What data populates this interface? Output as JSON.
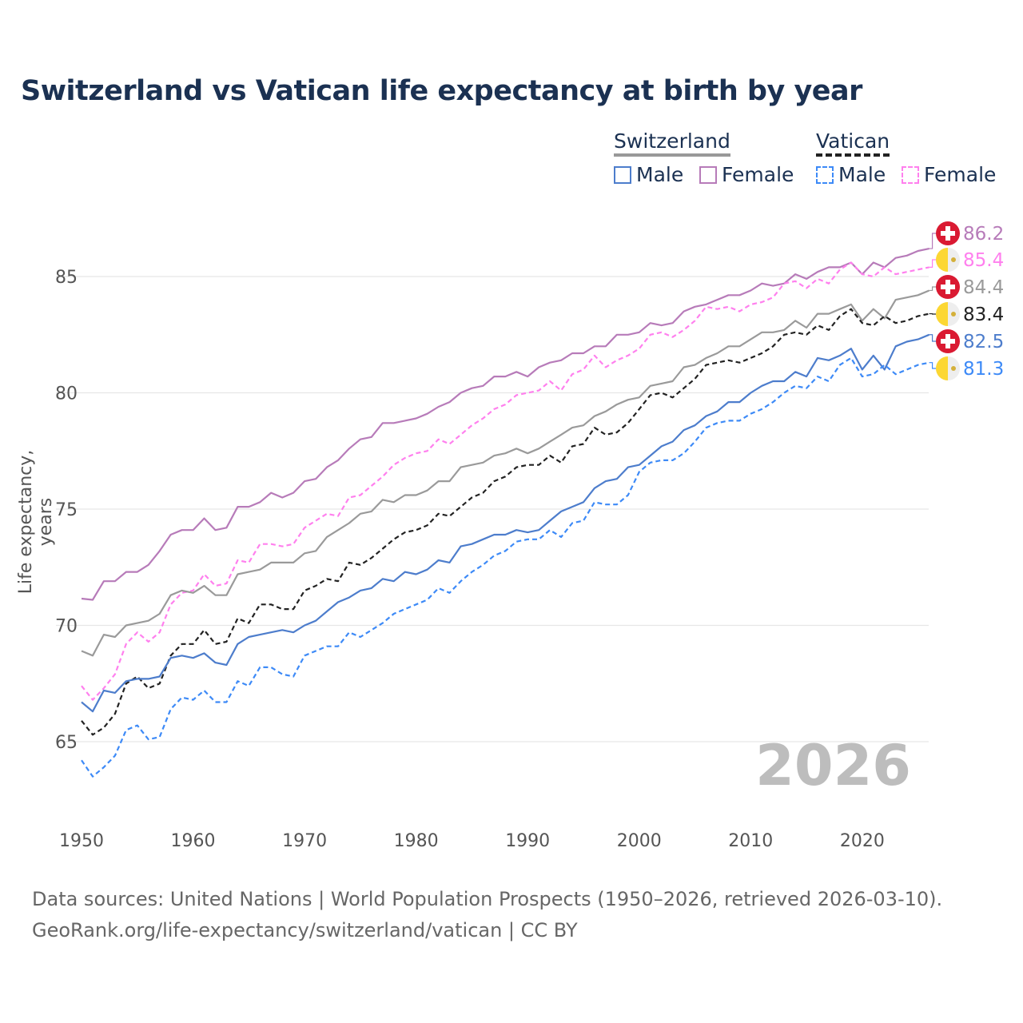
{
  "title": "Switzerland vs Vatican life expectancy at birth by year",
  "legend": {
    "group1": "Switzerland",
    "group2": "Vatican",
    "male": "Male",
    "female": "Female"
  },
  "year_label": "2026",
  "source_line1": "Data sources: United Nations | World Population Prospects (1950–2026, retrieved 2026-03-10).",
  "source_line2": "GeoRank.org/life-expectancy/switzerland/vatican | CC BY",
  "chart_data": {
    "type": "line",
    "title": "Switzerland vs Vatican life expectancy at birth by year",
    "xlabel": "",
    "ylabel": "Life expectancy, years",
    "xlim": [
      1950,
      2026
    ],
    "ylim": [
      62.5,
      87.5
    ],
    "xticks": [
      1950,
      1960,
      1970,
      1980,
      1990,
      2000,
      2010,
      2020
    ],
    "yticks": [
      65,
      70,
      75,
      80,
      85
    ],
    "grid": true,
    "legend_position": "top-right",
    "x_start": 1950,
    "series": [
      {
        "name": "Switzerland Female",
        "country": "Switzerland",
        "color": "#b77bb9",
        "dashed": false,
        "end_label": "86.2",
        "values": [
          71.15,
          71.1,
          71.9,
          71.9,
          72.3,
          72.3,
          72.6,
          73.2,
          73.9,
          74.1,
          74.1,
          74.6,
          74.1,
          74.2,
          75.1,
          75.1,
          75.3,
          75.7,
          75.5,
          75.7,
          76.2,
          76.3,
          76.8,
          77.1,
          77.6,
          78.0,
          78.1,
          78.7,
          78.7,
          78.8,
          78.9,
          79.1,
          79.4,
          79.6,
          80.0,
          80.2,
          80.3,
          80.7,
          80.7,
          80.9,
          80.7,
          81.1,
          81.3,
          81.4,
          81.7,
          81.7,
          82.0,
          82.0,
          82.5,
          82.5,
          82.6,
          83.0,
          82.9,
          83.0,
          83.5,
          83.7,
          83.8,
          84.0,
          84.2,
          84.2,
          84.4,
          84.7,
          84.6,
          84.7,
          85.1,
          84.9,
          85.2,
          85.4,
          85.4,
          85.6,
          85.1,
          85.6,
          85.4,
          85.8,
          85.9,
          86.1,
          86.2
        ]
      },
      {
        "name": "Vatican Female",
        "country": "Vatican",
        "color": "#ff80ee",
        "dashed": true,
        "end_label": "85.4",
        "values": [
          67.4,
          66.8,
          67.3,
          67.9,
          69.2,
          69.7,
          69.3,
          69.7,
          70.9,
          71.4,
          71.5,
          72.2,
          71.7,
          71.8,
          72.8,
          72.7,
          73.5,
          73.5,
          73.4,
          73.5,
          74.2,
          74.5,
          74.8,
          74.7,
          75.5,
          75.6,
          76.0,
          76.4,
          76.9,
          77.2,
          77.4,
          77.5,
          78.0,
          77.8,
          78.2,
          78.6,
          78.9,
          79.3,
          79.5,
          79.9,
          80.0,
          80.1,
          80.5,
          80.1,
          80.8,
          81.0,
          81.6,
          81.1,
          81.4,
          81.6,
          81.9,
          82.5,
          82.6,
          82.4,
          82.7,
          83.1,
          83.7,
          83.6,
          83.7,
          83.5,
          83.8,
          83.9,
          84.1,
          84.7,
          84.8,
          84.5,
          84.9,
          84.7,
          85.3,
          85.6,
          85.1,
          85.0,
          85.4,
          85.1,
          85.2,
          85.3,
          85.4
        ]
      },
      {
        "name": "Switzerland Total",
        "country": "Switzerland",
        "color": "#9a9a9a",
        "dashed": false,
        "end_label": "84.4",
        "values": [
          68.9,
          68.7,
          69.6,
          69.5,
          70.0,
          70.1,
          70.2,
          70.5,
          71.3,
          71.5,
          71.4,
          71.7,
          71.3,
          71.3,
          72.2,
          72.3,
          72.4,
          72.7,
          72.7,
          72.7,
          73.1,
          73.2,
          73.8,
          74.1,
          74.4,
          74.8,
          74.9,
          75.4,
          75.3,
          75.6,
          75.6,
          75.8,
          76.2,
          76.2,
          76.8,
          76.9,
          77.0,
          77.3,
          77.4,
          77.6,
          77.4,
          77.6,
          77.9,
          78.2,
          78.5,
          78.6,
          79.0,
          79.2,
          79.5,
          79.7,
          79.8,
          80.3,
          80.4,
          80.5,
          81.1,
          81.2,
          81.5,
          81.7,
          82.0,
          82.0,
          82.3,
          82.6,
          82.6,
          82.7,
          83.1,
          82.8,
          83.4,
          83.4,
          83.6,
          83.8,
          83.1,
          83.6,
          83.2,
          84.0,
          84.1,
          84.2,
          84.4
        ]
      },
      {
        "name": "Vatican Total",
        "country": "Vatican",
        "color": "#222222",
        "dashed": true,
        "end_label": "83.4",
        "values": [
          65.9,
          65.3,
          65.6,
          66.2,
          67.5,
          67.8,
          67.3,
          67.5,
          68.7,
          69.2,
          69.2,
          69.8,
          69.2,
          69.3,
          70.3,
          70.1,
          70.9,
          70.9,
          70.7,
          70.7,
          71.5,
          71.7,
          72.0,
          71.9,
          72.7,
          72.6,
          72.9,
          73.3,
          73.7,
          74.0,
          74.1,
          74.3,
          74.8,
          74.7,
          75.1,
          75.5,
          75.7,
          76.2,
          76.4,
          76.8,
          76.9,
          76.9,
          77.3,
          77.0,
          77.7,
          77.8,
          78.5,
          78.2,
          78.3,
          78.7,
          79.3,
          79.9,
          80.0,
          79.8,
          80.2,
          80.6,
          81.2,
          81.3,
          81.4,
          81.3,
          81.5,
          81.7,
          82.0,
          82.5,
          82.6,
          82.5,
          82.9,
          82.7,
          83.3,
          83.6,
          83.0,
          82.9,
          83.3,
          83.0,
          83.1,
          83.3,
          83.4
        ]
      },
      {
        "name": "Switzerland Male",
        "country": "Switzerland",
        "color": "#4d7dcc",
        "dashed": false,
        "end_label": "82.5",
        "values": [
          66.7,
          66.3,
          67.2,
          67.1,
          67.6,
          67.7,
          67.7,
          67.8,
          68.6,
          68.7,
          68.6,
          68.8,
          68.4,
          68.3,
          69.2,
          69.5,
          69.6,
          69.7,
          69.8,
          69.7,
          70.0,
          70.2,
          70.6,
          71.0,
          71.2,
          71.5,
          71.6,
          72.0,
          71.9,
          72.3,
          72.2,
          72.4,
          72.8,
          72.7,
          73.4,
          73.5,
          73.7,
          73.9,
          73.9,
          74.1,
          74.0,
          74.1,
          74.5,
          74.9,
          75.1,
          75.3,
          75.9,
          76.2,
          76.3,
          76.8,
          76.9,
          77.3,
          77.7,
          77.9,
          78.4,
          78.6,
          79.0,
          79.2,
          79.6,
          79.6,
          80.0,
          80.3,
          80.5,
          80.5,
          80.9,
          80.7,
          81.5,
          81.4,
          81.6,
          81.9,
          81.0,
          81.6,
          81.0,
          82.0,
          82.2,
          82.3,
          82.5
        ]
      },
      {
        "name": "Vatican Male",
        "country": "Vatican",
        "color": "#3d8af7",
        "dashed": true,
        "end_label": "81.3",
        "values": [
          64.2,
          63.5,
          63.9,
          64.4,
          65.5,
          65.7,
          65.1,
          65.2,
          66.4,
          66.9,
          66.8,
          67.2,
          66.7,
          66.7,
          67.6,
          67.4,
          68.2,
          68.2,
          67.9,
          67.8,
          68.7,
          68.9,
          69.1,
          69.1,
          69.7,
          69.5,
          69.8,
          70.1,
          70.5,
          70.7,
          70.9,
          71.1,
          71.6,
          71.4,
          71.9,
          72.3,
          72.6,
          73.0,
          73.2,
          73.6,
          73.7,
          73.7,
          74.1,
          73.8,
          74.4,
          74.5,
          75.3,
          75.2,
          75.2,
          75.6,
          76.6,
          77.0,
          77.1,
          77.1,
          77.4,
          77.9,
          78.5,
          78.7,
          78.8,
          78.8,
          79.1,
          79.3,
          79.6,
          80.0,
          80.3,
          80.2,
          80.7,
          80.5,
          81.2,
          81.5,
          80.7,
          80.8,
          81.2,
          80.8,
          81.0,
          81.2,
          81.3
        ]
      }
    ]
  }
}
